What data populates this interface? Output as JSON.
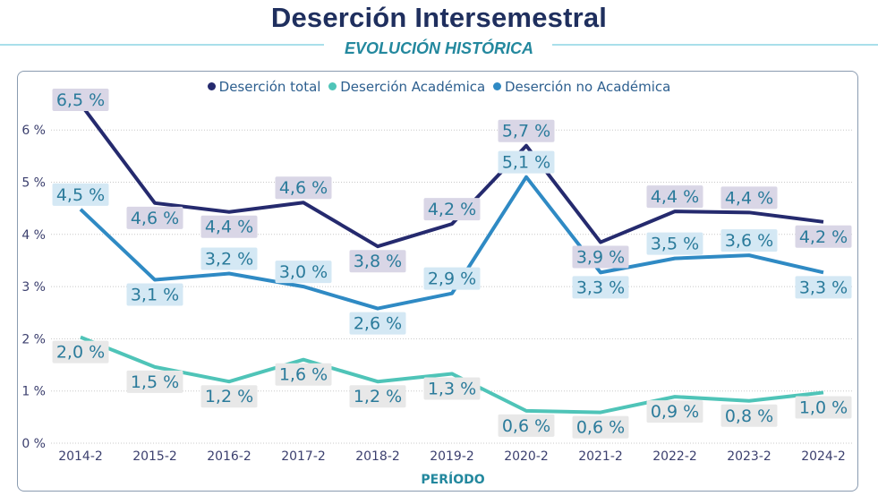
{
  "header": {
    "title": "Deserción Intersemestral",
    "subtitle": "EVOLUCIÓN HISTÓRICA"
  },
  "chart_data": {
    "type": "line",
    "title": "Deserción Intersemestral",
    "subtitle": "EVOLUCIÓN HISTÓRICA",
    "xlabel": "PERÍODO",
    "ylabel": "",
    "x": [
      "2014-2",
      "2015-2",
      "2016-2",
      "2017-2",
      "2018-2",
      "2019-2",
      "2020-2",
      "2021-2",
      "2022-2",
      "2023-2",
      "2024-2"
    ],
    "ylim": [
      0,
      6.6
    ],
    "yticks": [
      0,
      1,
      2,
      3,
      4,
      5,
      6
    ],
    "ytick_labels": [
      "0 %",
      "1 %",
      "2 %",
      "3 %",
      "4 %",
      "5 %",
      "6 %"
    ],
    "grid": "horizontal-dotted",
    "legend_position": "top-center",
    "series": [
      {
        "name": "Deserción total",
        "color": "#252a6e",
        "label_bg": "#d9d6e6",
        "values": [
          6.5,
          4.6,
          4.43,
          4.61,
          3.77,
          4.2,
          5.7,
          3.85,
          4.44,
          4.42,
          4.24
        ],
        "labels": [
          "6,5 %",
          "4,6 %",
          "4,4 %",
          "4,6 %",
          "3,8 %",
          "4,2 %",
          "5,7 %",
          "3,9 %",
          "4,4 %",
          "4,4 %",
          "4,2 %"
        ],
        "label_pos": [
          "above",
          "below",
          "below",
          "above",
          "below",
          "above",
          "above",
          "below",
          "above",
          "above",
          "below"
        ]
      },
      {
        "name": "Deserción Académica",
        "color": "#4fc4b8",
        "label_bg": "#e8e8e8",
        "values": [
          2.03,
          1.46,
          1.18,
          1.6,
          1.18,
          1.33,
          0.62,
          0.59,
          0.89,
          0.81,
          0.97
        ],
        "labels": [
          "2,0 %",
          "1,5 %",
          "1,2 %",
          "1,6 %",
          "1,2 %",
          "1,3 %",
          "0,6 %",
          "0,6 %",
          "0,9 %",
          "0,8 %",
          "1,0 %"
        ],
        "label_pos": [
          "below",
          "below",
          "below",
          "below",
          "below",
          "below",
          "below",
          "below",
          "below",
          "below",
          "below"
        ]
      },
      {
        "name": "Deserción no Académica",
        "color": "#2f8ac4",
        "label_bg": "#d4e8f4",
        "values": [
          4.48,
          3.13,
          3.25,
          3.0,
          2.58,
          2.87,
          5.1,
          3.27,
          3.54,
          3.6,
          3.27
        ],
        "labels": [
          "4,5 %",
          "3,1 %",
          "3,2 %",
          "3,0 %",
          "2,6 %",
          "2,9 %",
          "5,1 %",
          "3,3 %",
          "3,5 %",
          "3,6 %",
          "3,3 %"
        ],
        "label_pos": [
          "above",
          "below",
          "above",
          "above",
          "below",
          "above",
          "above",
          "below",
          "above",
          "above",
          "below"
        ]
      }
    ]
  }
}
